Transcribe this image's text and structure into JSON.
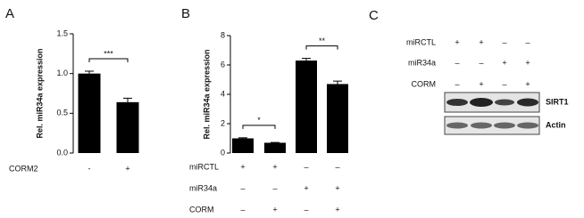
{
  "panel_labels": [
    "A",
    "B",
    "C"
  ],
  "chart_data": [
    {
      "type": "bar",
      "ylabel": "Rel. miR34a expression",
      "values": [
        1.0,
        0.64
      ],
      "errors": [
        0.03,
        0.05
      ],
      "color": "#000000",
      "ylim": [
        0,
        1.5
      ],
      "yticks": [
        {
          "value": 0,
          "label": "0.0"
        },
        {
          "value": 0.5,
          "label": "0.5"
        },
        {
          "value": 1,
          "label": "1.0"
        },
        {
          "value": 1.5,
          "label": "1.5"
        }
      ],
      "conditions": [
        {
          "name": "CORM2",
          "marks": [
            "-",
            "+"
          ]
        }
      ],
      "annotations": [
        {
          "text": "***",
          "from": 0,
          "to": 1
        }
      ]
    },
    {
      "type": "bar",
      "ylabel": "Rel. miR34a expression",
      "values": [
        1.0,
        0.7,
        6.3,
        4.7
      ],
      "errors": [
        0.04,
        0.02,
        0.15,
        0.2
      ],
      "color": "#000000",
      "ylim": [
        0,
        8
      ],
      "yticks": [
        0,
        2,
        4,
        6,
        8
      ],
      "conditions": [
        {
          "name": "miRCTL",
          "marks": [
            "+",
            "+",
            "–",
            "–"
          ]
        },
        {
          "name": "miR34a",
          "marks": [
            "–",
            "–",
            "+",
            "+"
          ]
        },
        {
          "name": "CORM",
          "marks": [
            "–",
            "+",
            "–",
            "+"
          ]
        }
      ],
      "annotations": [
        {
          "text": "*",
          "from": 0,
          "to": 1
        },
        {
          "text": "**",
          "from": 2,
          "to": 3
        }
      ]
    }
  ],
  "blot": {
    "conditions": [
      {
        "name": "miRCTL",
        "marks": [
          "+",
          "+",
          "–",
          "–"
        ]
      },
      {
        "name": "miR34a",
        "marks": [
          "–",
          "–",
          "+",
          "+"
        ]
      },
      {
        "name": "CORM",
        "marks": [
          "–",
          "+",
          "–",
          "+"
        ]
      }
    ],
    "bands": [
      "SIRT1",
      "Actin"
    ]
  }
}
